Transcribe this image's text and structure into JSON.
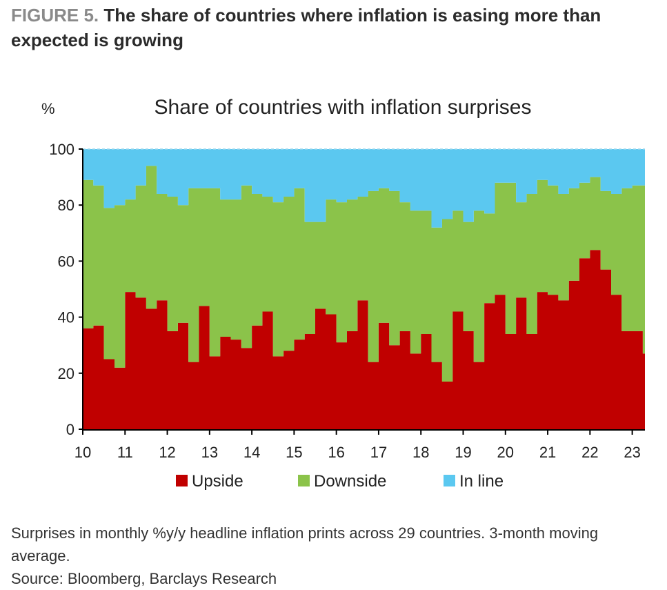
{
  "figure": {
    "label": "FIGURE 5.",
    "title": "The share of countries where inflation is easing more than expected is growing"
  },
  "notes": {
    "description": "Surprises in monthly %y/y headline inflation prints across 29 countries. 3-month moving average.",
    "source": "Source: Bloomberg, Barclays Research"
  },
  "chart_data": {
    "type": "area",
    "stacked": true,
    "title": "Share of countries with inflation surprises",
    "ylabel": "%",
    "xlabel": "",
    "ylim": [
      0,
      100
    ],
    "yticks": [
      0,
      20,
      40,
      60,
      80,
      100
    ],
    "xlim": [
      2010.0,
      2023.3
    ],
    "xticks": [
      2010,
      2011,
      2012,
      2013,
      2014,
      2015,
      2016,
      2017,
      2018,
      2019,
      2020,
      2021,
      2022,
      2023
    ],
    "xtick_labels": [
      "10",
      "11",
      "12",
      "13",
      "14",
      "15",
      "16",
      "17",
      "18",
      "19",
      "20",
      "21",
      "22",
      "23"
    ],
    "legend": {
      "placement": "bottom",
      "entries": [
        "Upside",
        "Downside",
        "In line"
      ]
    },
    "colors": {
      "Upside": "#c00000",
      "Downside": "#8bc34a",
      "In line": "#5bc8f0"
    },
    "x": [
      2010.0,
      2010.25,
      2010.5,
      2010.75,
      2011.0,
      2011.25,
      2011.5,
      2011.75,
      2012.0,
      2012.25,
      2012.5,
      2012.75,
      2013.0,
      2013.25,
      2013.5,
      2013.75,
      2014.0,
      2014.25,
      2014.5,
      2014.75,
      2015.0,
      2015.25,
      2015.5,
      2015.75,
      2016.0,
      2016.25,
      2016.5,
      2016.75,
      2017.0,
      2017.25,
      2017.5,
      2017.75,
      2018.0,
      2018.25,
      2018.5,
      2018.75,
      2019.0,
      2019.25,
      2019.5,
      2019.75,
      2020.0,
      2020.25,
      2020.5,
      2020.75,
      2021.0,
      2021.25,
      2021.5,
      2021.75,
      2022.0,
      2022.25,
      2022.5,
      2022.75,
      2023.0,
      2023.25
    ],
    "series": [
      {
        "name": "Upside",
        "values": [
          36,
          37,
          25,
          22,
          49,
          47,
          43,
          46,
          35,
          38,
          24,
          44,
          26,
          33,
          32,
          29,
          37,
          42,
          26,
          28,
          32,
          34,
          43,
          41,
          31,
          35,
          46,
          24,
          38,
          30,
          35,
          27,
          34,
          24,
          17,
          42,
          35,
          24,
          45,
          48,
          34,
          47,
          34,
          49,
          48,
          46,
          53,
          61,
          64,
          57,
          48,
          35,
          35,
          27
        ]
      },
      {
        "name": "Downside",
        "values": [
          53,
          50,
          54,
          58,
          33,
          40,
          51,
          38,
          48,
          42,
          62,
          42,
          60,
          49,
          50,
          58,
          47,
          41,
          55,
          55,
          54,
          40,
          31,
          41,
          50,
          47,
          37,
          61,
          48,
          55,
          46,
          51,
          44,
          48,
          58,
          36,
          39,
          54,
          32,
          40,
          54,
          34,
          50,
          40,
          39,
          38,
          33,
          27,
          26,
          28,
          36,
          51,
          52,
          60
        ]
      },
      {
        "name": "In line",
        "values": [
          11,
          13,
          21,
          20,
          18,
          13,
          6,
          16,
          17,
          20,
          14,
          14,
          14,
          18,
          18,
          13,
          16,
          17,
          19,
          17,
          14,
          26,
          26,
          18,
          19,
          18,
          17,
          15,
          14,
          15,
          19,
          22,
          22,
          28,
          25,
          22,
          26,
          22,
          23,
          12,
          12,
          19,
          16,
          11,
          13,
          16,
          14,
          12,
          10,
          15,
          16,
          14,
          13,
          13
        ]
      }
    ]
  }
}
